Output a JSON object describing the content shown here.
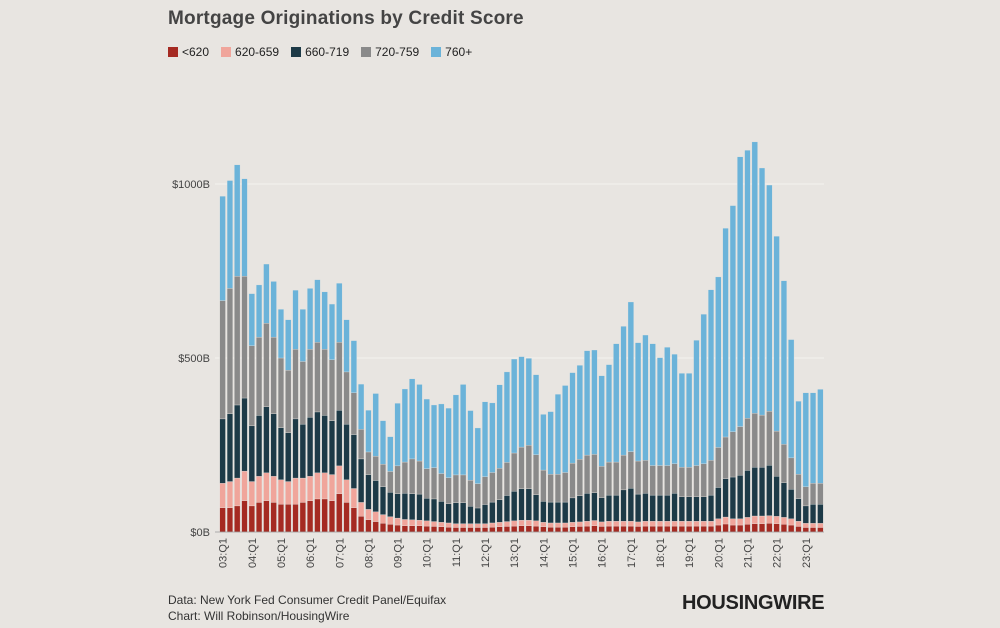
{
  "chart_data": {
    "type": "bar",
    "stacked": true,
    "title": "Mortgage Originations by Credit Score",
    "xlabel": "",
    "ylabel": "",
    "ylim": [
      0,
      1250
    ],
    "y_ticks": [
      0,
      500,
      1000
    ],
    "y_tick_labels": [
      "$0B",
      "$500B",
      "$1000B"
    ],
    "grid": true,
    "x_tick_labels": [
      "03:Q1",
      "04:Q1",
      "05:Q1",
      "06:Q1",
      "07:Q1",
      "08:Q1",
      "09:Q1",
      "10:Q1",
      "11:Q1",
      "12:Q1",
      "13:Q1",
      "14:Q1",
      "15:Q1",
      "16:Q1",
      "17:Q1",
      "18:Q1",
      "19:Q1",
      "20:Q1",
      "21:Q1",
      "22:Q1",
      "23:Q1"
    ],
    "categories": [
      "03Q1",
      "03Q2",
      "03Q3",
      "03Q4",
      "04Q1",
      "04Q2",
      "04Q3",
      "04Q4",
      "05Q1",
      "05Q2",
      "05Q3",
      "05Q4",
      "06Q1",
      "06Q2",
      "06Q3",
      "06Q4",
      "07Q1",
      "07Q2",
      "07Q3",
      "07Q4",
      "08Q1",
      "08Q2",
      "08Q3",
      "08Q4",
      "09Q1",
      "09Q2",
      "09Q3",
      "09Q4",
      "10Q1",
      "10Q2",
      "10Q3",
      "10Q4",
      "11Q1",
      "11Q2",
      "11Q3",
      "11Q4",
      "12Q1",
      "12Q2",
      "12Q3",
      "12Q4",
      "13Q1",
      "13Q2",
      "13Q3",
      "13Q4",
      "14Q1",
      "14Q2",
      "14Q3",
      "14Q4",
      "15Q1",
      "15Q2",
      "15Q3",
      "15Q4",
      "16Q1",
      "16Q2",
      "16Q3",
      "16Q4",
      "17Q1",
      "17Q2",
      "17Q3",
      "17Q4",
      "18Q1",
      "18Q2",
      "18Q3",
      "18Q4",
      "19Q1",
      "19Q2",
      "19Q3",
      "19Q4",
      "20Q1",
      "20Q2",
      "20Q3",
      "20Q4",
      "21Q1",
      "21Q2",
      "21Q3",
      "21Q4",
      "22Q1",
      "22Q2",
      "22Q3",
      "22Q4",
      "23Q1",
      "23Q2",
      "23Q3"
    ],
    "series": [
      {
        "name": "<620",
        "color": "#a52a22",
        "values": [
          70,
          70,
          75,
          90,
          75,
          85,
          90,
          85,
          80,
          80,
          80,
          85,
          90,
          95,
          95,
          90,
          110,
          85,
          70,
          45,
          35,
          30,
          25,
          22,
          20,
          18,
          18,
          18,
          17,
          16,
          15,
          14,
          13,
          13,
          13,
          13,
          13,
          14,
          15,
          16,
          17,
          18,
          18,
          17,
          15,
          14,
          14,
          14,
          15,
          16,
          17,
          18,
          16,
          17,
          17,
          17,
          17,
          16,
          17,
          17,
          17,
          17,
          17,
          17,
          17,
          17,
          17,
          17,
          20,
          23,
          20,
          20,
          22,
          24,
          24,
          25,
          24,
          22,
          20,
          16,
          13,
          13,
          13
        ]
      },
      {
        "name": "620-659",
        "color": "#f0a59b",
        "values": [
          70,
          75,
          80,
          85,
          70,
          75,
          80,
          75,
          70,
          65,
          75,
          70,
          70,
          75,
          75,
          75,
          80,
          65,
          55,
          40,
          30,
          28,
          25,
          22,
          20,
          18,
          17,
          16,
          15,
          14,
          13,
          12,
          11,
          11,
          11,
          11,
          11,
          12,
          13,
          14,
          15,
          16,
          16,
          15,
          13,
          12,
          12,
          12,
          13,
          13,
          14,
          15,
          13,
          14,
          14,
          14,
          14,
          13,
          14,
          14,
          14,
          14,
          14,
          14,
          14,
          14,
          14,
          14,
          18,
          20,
          18,
          18,
          20,
          22,
          22,
          22,
          21,
          20,
          18,
          15,
          12,
          12,
          12
        ]
      },
      {
        "name": "660-719",
        "color": "#1d3a47",
        "values": [
          185,
          195,
          210,
          210,
          160,
          175,
          190,
          180,
          150,
          140,
          170,
          155,
          170,
          175,
          165,
          155,
          160,
          160,
          155,
          125,
          100,
          90,
          80,
          70,
          70,
          75,
          75,
          75,
          65,
          65,
          60,
          55,
          60,
          60,
          50,
          45,
          55,
          60,
          65,
          75,
          85,
          90,
          90,
          75,
          60,
          60,
          60,
          60,
          70,
          75,
          80,
          80,
          70,
          75,
          75,
          90,
          95,
          80,
          80,
          75,
          75,
          75,
          80,
          70,
          70,
          70,
          70,
          75,
          90,
          110,
          120,
          125,
          135,
          140,
          140,
          145,
          115,
          100,
          85,
          65,
          50,
          55,
          55
        ]
      },
      {
        "name": "720-759",
        "color": "#8a8a8a",
        "values": [
          340,
          360,
          370,
          350,
          230,
          225,
          240,
          220,
          200,
          180,
          200,
          180,
          195,
          200,
          190,
          175,
          195,
          150,
          120,
          85,
          65,
          70,
          65,
          60,
          80,
          90,
          100,
          95,
          85,
          90,
          80,
          75,
          80,
          80,
          75,
          70,
          80,
          85,
          90,
          95,
          110,
          120,
          125,
          115,
          90,
          80,
          80,
          85,
          100,
          105,
          110,
          110,
          90,
          95,
          95,
          100,
          105,
          95,
          95,
          85,
          85,
          85,
          85,
          85,
          85,
          90,
          95,
          100,
          115,
          120,
          130,
          140,
          150,
          155,
          150,
          155,
          130,
          110,
          90,
          70,
          55,
          60,
          60
        ]
      },
      {
        "name": "760+",
        "color": "#6bb3d9",
        "values": [
          300,
          310,
          320,
          280,
          150,
          150,
          170,
          160,
          140,
          145,
          170,
          150,
          175,
          180,
          165,
          160,
          170,
          150,
          150,
          130,
          120,
          180,
          125,
          100,
          180,
          210,
          230,
          220,
          200,
          180,
          200,
          200,
          230,
          260,
          200,
          160,
          215,
          200,
          240,
          260,
          270,
          260,
          250,
          230,
          160,
          180,
          230,
          250,
          260,
          270,
          300,
          300,
          260,
          280,
          340,
          370,
          430,
          340,
          360,
          350,
          310,
          340,
          315,
          270,
          270,
          360,
          430,
          490,
          490,
          600,
          650,
          775,
          770,
          780,
          710,
          650,
          560,
          470,
          340,
          210,
          270,
          260,
          270
        ]
      }
    ]
  },
  "footer": {
    "line1": "Data: New York Fed Consumer Credit Panel/Equifax",
    "line2": "Chart: Will Robinson/HousingWire"
  },
  "brand": "HOUSINGWIRE"
}
